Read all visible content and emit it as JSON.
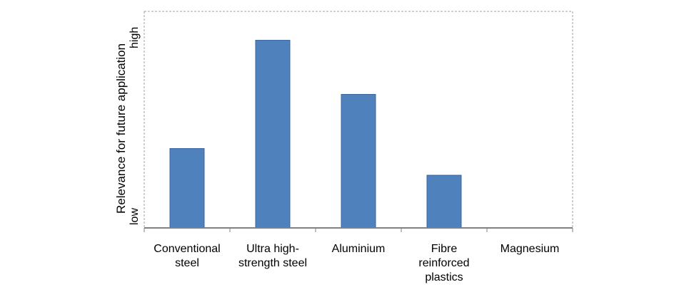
{
  "chart_data": {
    "type": "bar",
    "categories": [
      "Conventional\nsteel",
      "Ultra high-\nstrength steel",
      "Aluminium",
      "Fibre\nreinforced\nplastics",
      "Magnesium"
    ],
    "values": [
      1.1,
      2.6,
      1.85,
      0.73,
      0
    ],
    "ylabel": "Relevance for future application",
    "y_tick_low": "low",
    "y_tick_high": "high",
    "ylim": [
      0,
      3
    ],
    "grid": false,
    "bar_color": "#4f81bd",
    "bar_edge_color": "#3a66a0",
    "axis_color": "#808080"
  }
}
